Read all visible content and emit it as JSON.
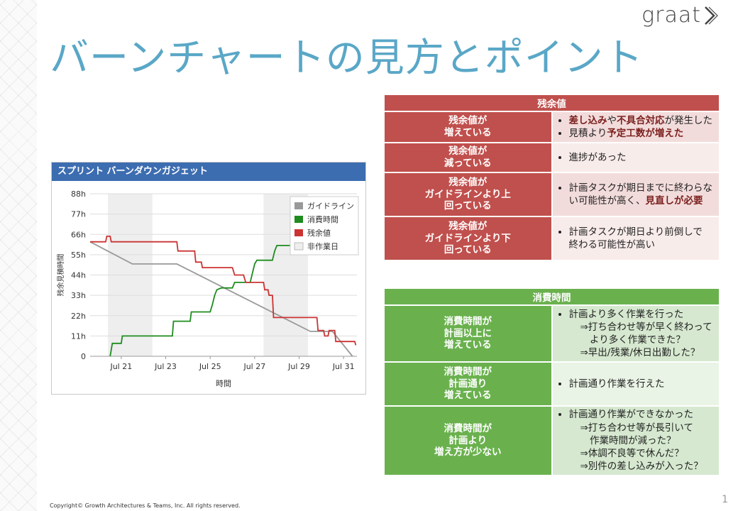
{
  "logo": {
    "text": "graat"
  },
  "title": "バーンチャートの見方とポイント",
  "gadget": {
    "header": "スプリント バーンダウンガジェット",
    "chart_data": {
      "type": "line",
      "ylabel": "残余見積時間",
      "xlabel": "時間",
      "y_ticks": [
        "0",
        "11h",
        "22h",
        "33h",
        "44h",
        "55h",
        "66h",
        "77h",
        "88h"
      ],
      "x_ticks": [
        "Jul 21",
        "Jul 23",
        "Jul 25",
        "Jul 27",
        "Jul 29",
        "Jul 31"
      ],
      "x_tick_days": [
        21,
        23,
        25,
        27,
        29,
        31
      ],
      "x_range_days": [
        19.6,
        31.6
      ],
      "ylim": [
        0,
        88
      ],
      "nonworking_days": [
        [
          20.4,
          22.4
        ],
        [
          27.4,
          29.4
        ]
      ],
      "legend_position": "top-right",
      "series": [
        {
          "name": "ガイドライン",
          "color": "#999999",
          "points": [
            [
              19.6,
              62
            ],
            [
              21.5,
              50
            ],
            [
              23.5,
              50
            ],
            [
              29.5,
              13.5
            ],
            [
              30.5,
              13.5
            ],
            [
              31.4,
              0
            ]
          ]
        },
        {
          "name": "消費時間",
          "color": "#1e8c1e",
          "points": [
            [
              20.5,
              0
            ],
            [
              20.6,
              7
            ],
            [
              21.0,
              7
            ],
            [
              21.05,
              11
            ],
            [
              23.3,
              11
            ],
            [
              23.35,
              19
            ],
            [
              24.1,
              19
            ],
            [
              24.15,
              24
            ],
            [
              25.0,
              24
            ],
            [
              25.1,
              28
            ],
            [
              25.2,
              33
            ],
            [
              25.3,
              36
            ],
            [
              25.5,
              37
            ],
            [
              26.0,
              37
            ],
            [
              26.1,
              40
            ],
            [
              26.8,
              40
            ],
            [
              26.9,
              45
            ],
            [
              27.0,
              50
            ],
            [
              27.1,
              52
            ],
            [
              27.8,
              52
            ],
            [
              27.9,
              57
            ],
            [
              28.0,
              60
            ],
            [
              30.0,
              60
            ]
          ]
        },
        {
          "name": "残余値",
          "color": "#cc3333",
          "points": [
            [
              19.6,
              62
            ],
            [
              20.3,
              62
            ],
            [
              20.35,
              65
            ],
            [
              20.5,
              65
            ],
            [
              20.55,
              62
            ],
            [
              23.5,
              62
            ],
            [
              23.55,
              57
            ],
            [
              24.3,
              57
            ],
            [
              24.35,
              51
            ],
            [
              24.6,
              51
            ],
            [
              24.65,
              48
            ],
            [
              26.0,
              48
            ],
            [
              26.1,
              44
            ],
            [
              26.5,
              44
            ],
            [
              26.6,
              40
            ],
            [
              27.4,
              40
            ],
            [
              27.45,
              36
            ],
            [
              27.6,
              36
            ],
            [
              27.65,
              33
            ],
            [
              27.8,
              33
            ],
            [
              27.85,
              21
            ],
            [
              29.8,
              21
            ],
            [
              29.85,
              14
            ],
            [
              30.1,
              14
            ],
            [
              30.15,
              11
            ],
            [
              30.3,
              11
            ],
            [
              30.35,
              14
            ],
            [
              30.6,
              14
            ],
            [
              30.65,
              8
            ],
            [
              31.5,
              8
            ],
            [
              31.55,
              6
            ]
          ]
        }
      ],
      "legend": [
        "ガイドライン",
        "消費時間",
        "残余値",
        "非作業日"
      ],
      "legend_colors": [
        "#999999",
        "#1e8c1e",
        "#cc3333",
        "#eeeeee"
      ]
    }
  },
  "remaining": {
    "header": "残余値",
    "rows": [
      {
        "label": "残余値が\n増えている",
        "items": [
          {
            "parts": [
              {
                "t": "差し込み",
                "b": true
              },
              {
                "t": "や",
                "b": false
              },
              {
                "t": "不具合対応",
                "b": true
              },
              {
                "t": "が発生した",
                "b": false
              }
            ]
          },
          {
            "parts": [
              {
                "t": "見積より",
                "b": false
              },
              {
                "t": "予定工数が増えた",
                "b": true
              }
            ]
          }
        ]
      },
      {
        "label": "残余値が\n減っている",
        "items": [
          {
            "parts": [
              {
                "t": "進捗があった",
                "b": false
              }
            ]
          }
        ]
      },
      {
        "label": "残余値が\nガイドラインより上\n回っている",
        "items": [
          {
            "parts": [
              {
                "t": "計画タスクが期日までに終わらない可能性が高く、",
                "b": false
              },
              {
                "t": "見直しが必要",
                "b": true
              }
            ]
          }
        ]
      },
      {
        "label": "残余値が\nガイドラインより下\n回っている",
        "items": [
          {
            "parts": [
              {
                "t": "計画タスクが期日より前倒しで\n終わる可能性が高い",
                "b": false
              }
            ]
          }
        ]
      }
    ]
  },
  "consumed": {
    "header": "消費時間",
    "rows": [
      {
        "label": "消費時間が\n計画以上に\n増えている",
        "items": [
          {
            "main": "計画より多く作業を行った",
            "subs": [
              "⇒打ち合わせ等が早く終わって\n　より多く作業できた？"
            ]
          },
          {
            "main": "",
            "subs": [
              "⇒早出/残業/休日出勤した？"
            ]
          }
        ]
      },
      {
        "label": "消費時間が\n計画通り\n増えている",
        "items": [
          {
            "main": "計画通り作業を行えた",
            "subs": []
          }
        ]
      },
      {
        "label": "消費時間が\n計画より\n増え方が少ない",
        "items": [
          {
            "main": "計画通り作業ができなかった",
            "subs": [
              "⇒打ち合わせ等が長引いて\n　作業時間が減った？",
              "⇒体調不良等で休んだ？",
              "⇒別件の差し込みが入った？"
            ]
          }
        ]
      }
    ]
  },
  "footer": "Copyright© Growth Architectures & Teams, Inc. All rights reserved.",
  "page_number": "1"
}
